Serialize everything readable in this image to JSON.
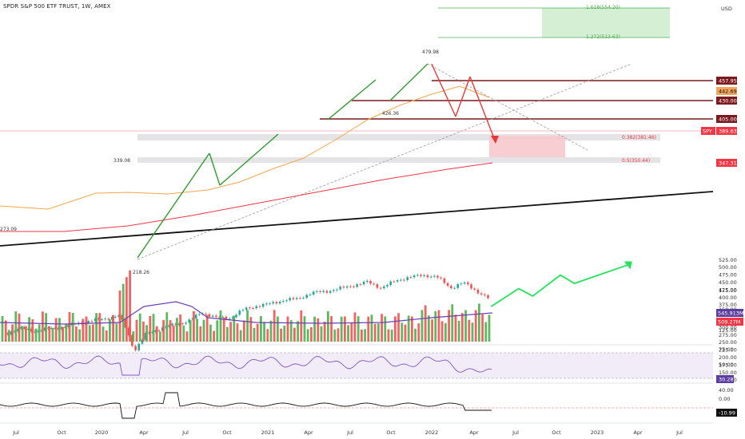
{
  "header": {
    "title": "SPDR S&P 500 ETF TRUST, 1W, AMEX"
  },
  "price_axis": {
    "unit_label": "USD",
    "ticks": [
      "525.00",
      "500.00",
      "475.00",
      "450.00",
      "425.00",
      "400.00",
      "375.00",
      "350.00",
      "325.00",
      "300.00",
      "275.00",
      "250.00",
      "225.00",
      "200.00",
      "175.00",
      "150.00",
      "125.00"
    ]
  },
  "time_axis": {
    "labels": [
      "Jul",
      "Oct",
      "2020",
      "Apr",
      "Jul",
      "Oct",
      "2021",
      "Apr",
      "Jul",
      "Oct",
      "2022",
      "Apr",
      "Jul",
      "Oct",
      "2023",
      "Apr",
      "Jul"
    ]
  },
  "price_badges": [
    {
      "text": "457.95",
      "bg": "#7b1a1f",
      "fg": "#ffffff"
    },
    {
      "text": "442.69",
      "bg": "#f4a55c",
      "fg": "#111111"
    },
    {
      "text": "430.00",
      "bg": "#7b1a1f",
      "fg": "#ffffff"
    },
    {
      "text": "405.00",
      "bg": "#7b1a1f",
      "fg": "#ffffff"
    },
    {
      "text": "389.63",
      "bg": "#f23645",
      "fg": "#ffffff",
      "prefix": "SPY"
    },
    {
      "text": "347.31",
      "bg": "#f23645",
      "fg": "#ffffff"
    }
  ],
  "annotations": {
    "high_label": "479.98",
    "mid_label": "426.36",
    "left_label": "339.08",
    "low_label": "218.26",
    "edge_label": "273.09",
    "fib_1618": "1.618(554.20)",
    "fib_1272": "1.272(513.63)",
    "fib_0382": "0.382(381.46)",
    "fib_05": "0.5(350.44)"
  },
  "volume_axis": {
    "ticks": [
      "175.00",
      "150.00",
      "125.00"
    ],
    "badges": [
      {
        "text": "545.913M",
        "bg": "#5b3fa0",
        "fg": "#ffffff"
      },
      {
        "text": "509.27M",
        "bg": "#f23645",
        "fg": "#ffffff"
      }
    ]
  },
  "rsi_axis": {
    "ticks": [
      "75.00",
      "50.00",
      "25.00"
    ],
    "badge": {
      "text": "30.28",
      "bg": "#5b3fa0",
      "fg": "#ffffff"
    }
  },
  "osc_axis": {
    "ticks": [
      "40.00",
      "0.00"
    ],
    "badge": {
      "text": "-10.99",
      "bg": "#111111",
      "fg": "#ffffff"
    }
  },
  "colors": {
    "up": "#26a69a",
    "down": "#ef5350",
    "vol_up": "#4caf50",
    "vol_down": "#ef5350",
    "ma_orange": "#f7a54a",
    "ma_red": "#f23645",
    "level": "#7b1a1f",
    "fib_green": "#4caf50",
    "projection": "#22e35a",
    "rsi_line": "#7e57c2",
    "vol_ma": "#6a3fb6"
  },
  "chart_data": {
    "type": "candlestick",
    "symbol": "SPY",
    "interval": "1W",
    "ylim": [
      110,
      560
    ],
    "levels": [
      457.95,
      430.0,
      405.0
    ],
    "last_price": 389.63,
    "ma_short_last": 442.69,
    "ma_long_last": 347.31,
    "fibonacci": [
      {
        "label": "1.618",
        "value": 554.2
      },
      {
        "label": "1.272",
        "value": 513.63
      },
      {
        "label": "0.382",
        "value": 381.46
      },
      {
        "label": "0.5",
        "value": 350.44
      }
    ],
    "key_points": {
      "low_2020": 218.26,
      "pre_crash_high": 339.08,
      "ath": 479.98,
      "swing": 426.36
    },
    "price_path": [
      [
        "2019-06",
        282
      ],
      [
        "2019-07",
        298
      ],
      [
        "2019-08",
        288
      ],
      [
        "2019-09",
        297
      ],
      [
        "2019-10",
        302
      ],
      [
        "2019-11",
        314
      ],
      [
        "2019-12",
        322
      ],
      [
        "2020-01",
        330
      ],
      [
        "2020-02",
        339
      ],
      [
        "2020-03-01",
        300
      ],
      [
        "2020-03-20",
        222
      ],
      [
        "2020-04",
        280
      ],
      [
        "2020-05",
        296
      ],
      [
        "2020-06",
        310
      ],
      [
        "2020-07",
        320
      ],
      [
        "2020-08",
        350
      ],
      [
        "2020-09",
        334
      ],
      [
        "2020-10",
        330
      ],
      [
        "2020-11",
        360
      ],
      [
        "2020-12",
        372
      ],
      [
        "2021-01",
        380
      ],
      [
        "2021-02",
        392
      ],
      [
        "2021-03",
        396
      ],
      [
        "2021-04",
        416
      ],
      [
        "2021-05",
        420
      ],
      [
        "2021-06",
        430
      ],
      [
        "2021-07",
        440
      ],
      [
        "2021-08",
        452
      ],
      [
        "2021-09",
        432
      ],
      [
        "2021-10",
        455
      ],
      [
        "2021-11",
        468
      ],
      [
        "2021-12",
        474
      ],
      [
        "2022-01",
        470
      ],
      [
        "2022-02",
        432
      ],
      [
        "2022-03",
        450
      ],
      [
        "2022-04",
        420
      ],
      [
        "2022-05",
        392
      ]
    ],
    "projection_path": [
      [
        "2022-05",
        370
      ],
      [
        "2022-07",
        430
      ],
      [
        "2022-08",
        405
      ],
      [
        "2022-10",
        475
      ],
      [
        "2022-11",
        447
      ],
      [
        "2023-03",
        510
      ]
    ],
    "volume_ma_last": "545.913M",
    "volume_last": "509.27M",
    "rsi_last": 30.28,
    "oscillator_last": -10.99
  }
}
